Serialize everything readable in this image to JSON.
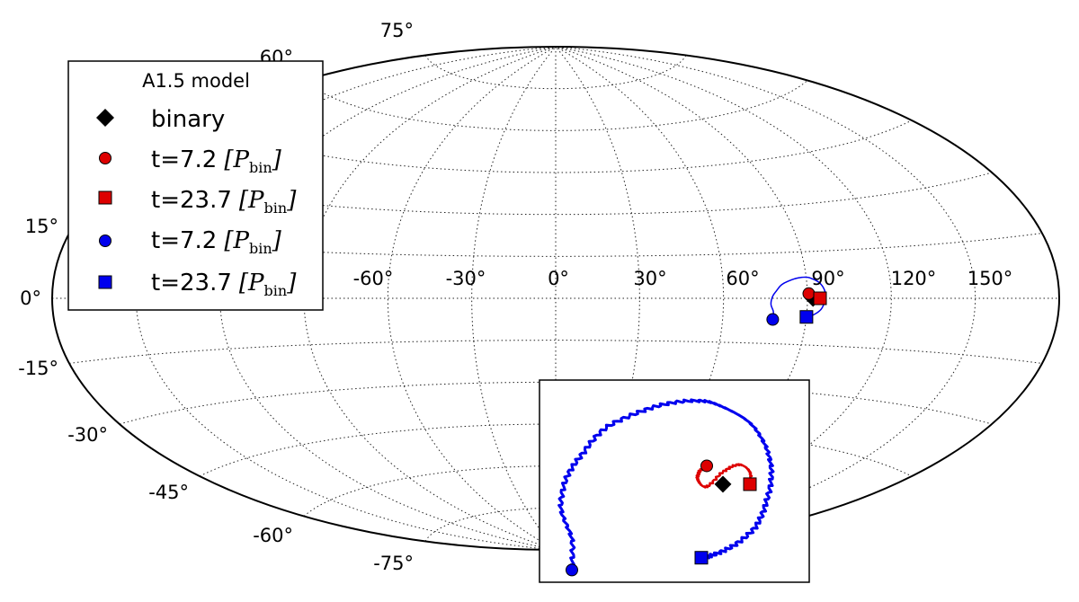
{
  "chart_data": {
    "type": "scatter",
    "projection": "aitoff",
    "title": "",
    "grid": true,
    "longitude_ticks": [
      "-60°",
      "-30°",
      "0°",
      "30°",
      "60°",
      "90°",
      "120°",
      "150°"
    ],
    "latitude_ticks": [
      "75°",
      "60°",
      "15°",
      "0°",
      "-15°",
      "-30°",
      "-45°",
      "-60°",
      "-75°"
    ],
    "legend": {
      "title": "A1.5 model",
      "placement": "upper-left",
      "entries": [
        {
          "label": "binary",
          "marker": "diamond",
          "color": "#000000"
        },
        {
          "label": "t=7.2",
          "unit_symbol": "P",
          "unit_sub": "bin",
          "marker": "circle",
          "color": "#dd0000"
        },
        {
          "label": "t=23.7",
          "unit_symbol": "P",
          "unit_sub": "bin",
          "marker": "square",
          "color": "#dd0000"
        },
        {
          "label": "t=7.2",
          "unit_symbol": "P",
          "unit_sub": "bin",
          "marker": "circle",
          "color": "#0000ee"
        },
        {
          "label": "t=23.7",
          "unit_symbol": "P",
          "unit_sub": "bin",
          "marker": "square",
          "color": "#0000ee"
        }
      ]
    },
    "points": {
      "binary": {
        "lon": 92,
        "lat": 0
      },
      "red_start": {
        "lon": 90.5,
        "lat": 1.5
      },
      "red_end": {
        "lon": 94.5,
        "lat": 0
      },
      "blue_start": {
        "lon": 78,
        "lat": -7
      },
      "blue_end": {
        "lon": 90,
        "lat": -6
      }
    },
    "tracks": {
      "blue": {
        "color": "#0000ee",
        "lon": [
          78,
          78,
          77,
          77.5,
          79,
          81,
          84,
          87,
          90,
          92,
          94.5,
          96,
          96.5,
          96,
          95,
          93,
          91,
          90
        ],
        "lat": [
          -7,
          -4.5,
          -2,
          0.5,
          2.5,
          4.5,
          5.8,
          6.6,
          6.8,
          6.3,
          5,
          3,
          0.8,
          -1.5,
          -3.5,
          -5,
          -5.8,
          -6
        ]
      },
      "red": {
        "color": "#dd0000",
        "lon": [
          90.5,
          89.8,
          89.7,
          90.5,
          92,
          93.5,
          94.5,
          94.5
        ],
        "lat": [
          1.5,
          1,
          0.3,
          -0.2,
          1,
          1.6,
          1,
          0
        ]
      }
    },
    "inset": {
      "lon_range": [
        75,
        100
      ],
      "lat_range": [
        -8,
        8.5
      ]
    }
  }
}
